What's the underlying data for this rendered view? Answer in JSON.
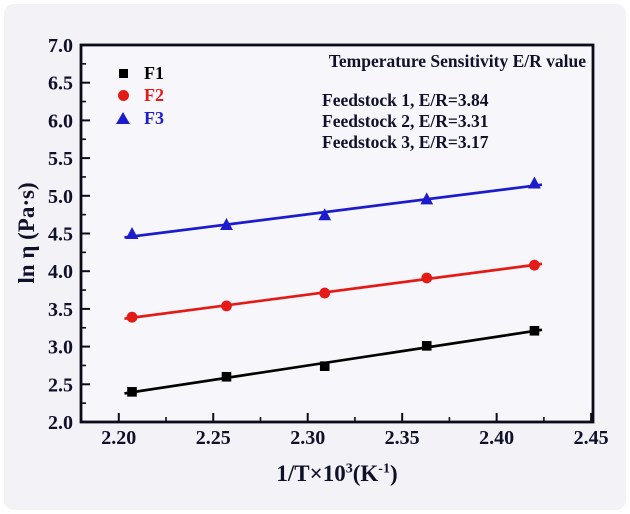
{
  "figure": {
    "bg_color": "#f2f2f7",
    "plot_bg_color": "#f7f7fb",
    "frame_color": "#0b0b1a",
    "text_color": "#10102a"
  },
  "annotation": {
    "title": "Temperature Sensitivity E/R value",
    "lines": [
      "Feedstock 1, E/R=3.84",
      "Feedstock 2, E/R=3.31",
      "Feedstock 3, E/R=3.17"
    ]
  },
  "legend": {
    "items": [
      {
        "label": "F1",
        "marker": "square",
        "color": "#000000"
      },
      {
        "label": "F2",
        "marker": "circle",
        "color": "#e41a17"
      },
      {
        "label": "F3",
        "marker": "triangle",
        "color": "#1c1ccd"
      }
    ]
  },
  "axes": {
    "ylabel": "ln η (Pa·s)",
    "xlabel_parts": {
      "b1": "1/T×10",
      "s1": "3",
      "b2": "(K",
      "s2": "-1",
      "b3": ")"
    }
  },
  "chart_data": {
    "type": "scatter",
    "title": "Temperature Sensitivity E/R value",
    "xlabel": "1/T×10³(K⁻¹)",
    "ylabel": "ln η (Pa·s)",
    "x": [
      2.207,
      2.257,
      2.309,
      2.363,
      2.42
    ],
    "series": [
      {
        "name": "F1",
        "color": "#000000",
        "marker": "square",
        "values": [
          2.4,
          2.6,
          2.74,
          3.01,
          3.21
        ],
        "er_value": 3.84
      },
      {
        "name": "F2",
        "color": "#e41a17",
        "marker": "circle",
        "values": [
          3.39,
          3.54,
          3.71,
          3.91,
          4.08
        ],
        "er_value": 3.31
      },
      {
        "name": "F3",
        "color": "#1c1ccd",
        "marker": "triangle",
        "values": [
          4.49,
          4.61,
          4.74,
          4.95,
          5.16
        ],
        "er_value": 3.17
      }
    ],
    "x_tick_labels": [
      "2.20",
      "2.25",
      "2.30",
      "2.35",
      "2.40",
      "2.45"
    ],
    "y_tick_labels": [
      "2.0",
      "2.5",
      "3.0",
      "3.5",
      "4.0",
      "4.5",
      "5.0",
      "5.5",
      "6.0",
      "6.5",
      "7.0"
    ],
    "xlim": [
      2.18,
      2.451
    ],
    "ylim": [
      2.0,
      7.0
    ],
    "x_minor_step": 0.025,
    "y_minor_step": 0.25,
    "grid": false,
    "legend_position": "top-left-inside",
    "fit_lines": true
  }
}
